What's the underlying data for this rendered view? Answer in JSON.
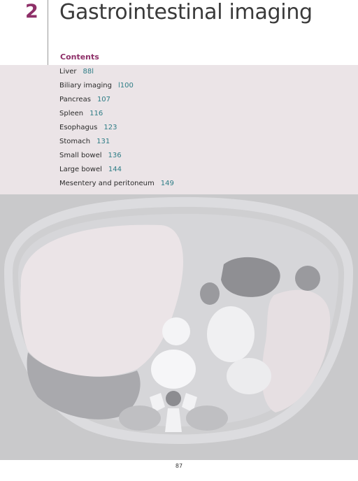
{
  "chapter": {
    "number": "2",
    "title": "Gastrointestinal imaging"
  },
  "contents": {
    "heading": "Contents",
    "items": [
      {
        "label": "Liver",
        "page": "88l"
      },
      {
        "label": "Biliary imaging",
        "page": "l100"
      },
      {
        "label": "Pancreas",
        "page": "107"
      },
      {
        "label": "Spleen",
        "page": "116"
      },
      {
        "label": "Esophagus",
        "page": "123"
      },
      {
        "label": "Stomach",
        "page": "131"
      },
      {
        "label": "Small bowel",
        "page": "136"
      },
      {
        "label": "Large bowel",
        "page": "144"
      },
      {
        "label": "Mesentery and peritoneum",
        "page": "149"
      }
    ]
  },
  "footer": {
    "page_number": "87"
  },
  "colors": {
    "accent": "#8e2f68",
    "page_link": "#2e7d86",
    "panel": "#ebe4e7",
    "scan_background": "#c9c9cb"
  }
}
